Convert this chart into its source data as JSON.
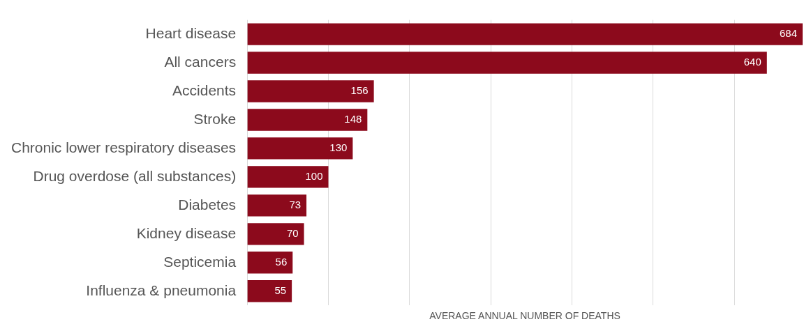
{
  "chart_data": {
    "type": "bar",
    "orientation": "horizontal",
    "xlabel": "AVERAGE ANNUAL NUMBER OF DEATHS",
    "categories": [
      "Heart disease",
      "All cancers",
      "Accidents",
      "Stroke",
      "Chronic lower respiratory diseases",
      "Drug overdose (all substances)",
      "Diabetes",
      "Kidney disease",
      "Septicemia",
      "Influenza & pneumonia"
    ],
    "values": [
      684,
      640,
      156,
      148,
      130,
      100,
      73,
      70,
      56,
      55
    ],
    "color": "#8c0a1c",
    "xticks": [
      {
        "value": 0,
        "label": null
      },
      {
        "value": 100,
        "label": null
      },
      {
        "value": 200,
        "label": null
      },
      {
        "value": 300,
        "label": null
      },
      {
        "value": 400,
        "label": null
      },
      {
        "value": 500,
        "label": null
      },
      {
        "value": 600,
        "label": null
      }
    ],
    "grid": "x",
    "tick_labels": "y",
    "data_labels": true
  }
}
